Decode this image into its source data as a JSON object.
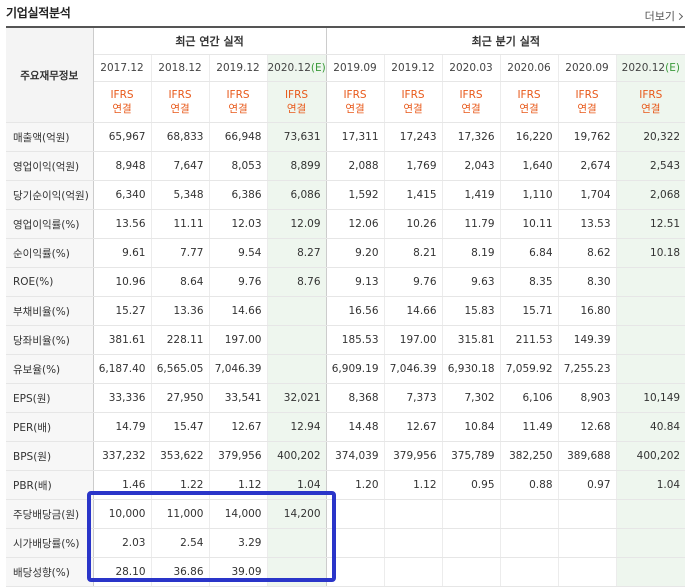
{
  "header": {
    "title": "기업실적분석",
    "more_label": "더보기"
  },
  "table": {
    "corner_label": "주요재무정보",
    "groups": {
      "annual": "최근 연간 실적",
      "quarter": "최근 분기 실적"
    },
    "years_annual": [
      "2017.12",
      "2018.12",
      "2019.12",
      "2020.12"
    ],
    "years_quarter": [
      "2019.09",
      "2019.12",
      "2020.03",
      "2020.06",
      "2020.09",
      "2020.12"
    ],
    "estimate_mark": "(E)",
    "type_top": "IFRS",
    "type_bottom": "연결",
    "rows": [
      {
        "label": "매출액(억원)",
        "values": [
          "65,967",
          "68,833",
          "66,948",
          "73,631",
          "17,311",
          "17,243",
          "17,326",
          "16,220",
          "19,762",
          "20,322"
        ]
      },
      {
        "label": "영업이익(억원)",
        "values": [
          "8,948",
          "7,647",
          "8,053",
          "8,899",
          "2,088",
          "1,769",
          "2,043",
          "1,640",
          "2,674",
          "2,543"
        ]
      },
      {
        "label": "당기순이익(억원)",
        "values": [
          "6,340",
          "5,348",
          "6,386",
          "6,086",
          "1,592",
          "1,415",
          "1,419",
          "1,110",
          "1,704",
          "2,068"
        ]
      },
      {
        "label": "영업이익률(%)",
        "values": [
          "13.56",
          "11.11",
          "12.03",
          "12.09",
          "12.06",
          "10.26",
          "11.79",
          "10.11",
          "13.53",
          "12.51"
        ]
      },
      {
        "label": "순이익률(%)",
        "values": [
          "9.61",
          "7.77",
          "9.54",
          "8.27",
          "9.20",
          "8.21",
          "8.19",
          "6.84",
          "8.62",
          "10.18"
        ]
      },
      {
        "label": "ROE(%)",
        "values": [
          "10.96",
          "8.64",
          "9.76",
          "8.76",
          "9.13",
          "9.76",
          "9.63",
          "8.35",
          "8.30",
          ""
        ]
      },
      {
        "label": "부채비율(%)",
        "values": [
          "15.27",
          "13.36",
          "14.66",
          "",
          "16.56",
          "14.66",
          "15.83",
          "15.71",
          "16.80",
          ""
        ]
      },
      {
        "label": "당좌비율(%)",
        "values": [
          "381.61",
          "228.11",
          "197.00",
          "",
          "185.53",
          "197.00",
          "315.81",
          "211.53",
          "149.39",
          ""
        ]
      },
      {
        "label": "유보율(%)",
        "values": [
          "6,187.40",
          "6,565.05",
          "7,046.39",
          "",
          "6,909.19",
          "7,046.39",
          "6,930.18",
          "7,059.92",
          "7,255.23",
          ""
        ]
      },
      {
        "label": "EPS(원)",
        "values": [
          "33,336",
          "27,950",
          "33,541",
          "32,021",
          "8,368",
          "7,373",
          "7,302",
          "6,106",
          "8,903",
          "10,149"
        ]
      },
      {
        "label": "PER(배)",
        "values": [
          "14.79",
          "15.47",
          "12.67",
          "12.94",
          "14.48",
          "12.67",
          "10.84",
          "11.49",
          "12.68",
          "40.84"
        ]
      },
      {
        "label": "BPS(원)",
        "values": [
          "337,232",
          "353,622",
          "379,956",
          "400,202",
          "374,039",
          "379,956",
          "375,789",
          "382,250",
          "389,688",
          "400,202"
        ]
      },
      {
        "label": "PBR(배)",
        "values": [
          "1.46",
          "1.22",
          "1.12",
          "1.04",
          "1.20",
          "1.12",
          "0.95",
          "0.88",
          "0.97",
          "1.04"
        ]
      },
      {
        "label": "주당배당금(원)",
        "values": [
          "10,000",
          "11,000",
          "14,000",
          "14,200",
          "",
          "",
          "",
          "",
          "",
          ""
        ]
      },
      {
        "label": "시가배당률(%)",
        "values": [
          "2.03",
          "2.54",
          "3.29",
          "",
          "",
          "",
          "",
          "",
          "",
          ""
        ]
      },
      {
        "label": "배당성향(%)",
        "values": [
          "28.10",
          "36.86",
          "39.09",
          "",
          "",
          "",
          "",
          "",
          "",
          ""
        ]
      }
    ]
  },
  "colors": {
    "type_text": "#e8591a",
    "estimate_bg": "#eef6ee",
    "highlight_box": "#2a35c9"
  }
}
